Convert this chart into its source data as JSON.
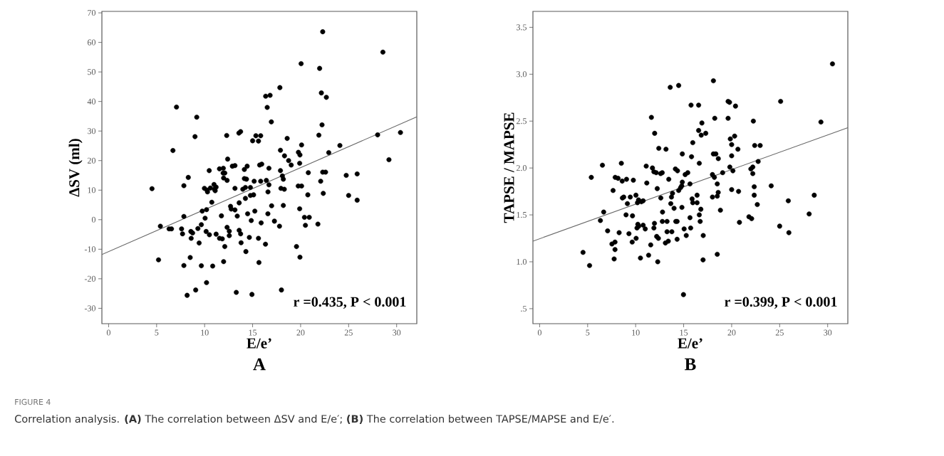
{
  "chart_data": [
    {
      "type": "scatter",
      "xlabel": "E/e’",
      "ylabel": "∆SV (ml)",
      "xlim": [
        -0.7,
        32.1
      ],
      "ylim": [
        -35.2,
        70.5
      ],
      "xticks": [
        0,
        5,
        10,
        15,
        20,
        25,
        30
      ],
      "yticks": [
        -30,
        -20,
        -10,
        0,
        10,
        20,
        30,
        40,
        50,
        60,
        70
      ],
      "annotations": [
        "r =0.435, P < 0.001",
        "A",
        "FIGURE 4",
        "Correlation analysis. **(A)** The correlation between ΔSV and E/e′; **(B)** The correlation between TAPSE/MAPSE and E/e′."
      ],
      "series": [
        {
          "marker": "circle",
          "color": "#000000",
          "x": [
            4.52,
            5.39,
            5.2,
            6.3,
            6.55,
            6.7,
            7.07,
            7.84,
            7.84,
            7.6,
            7.7,
            8.3,
            7.84,
            8.18,
            8.57,
            8.75,
            8.6,
            8.5,
            9.0,
            9.18,
            9.07,
            9.43,
            9.3,
            9.66,
            9.75,
            9.66,
            10.05,
            9.98,
            10.25,
            10.3,
            10.2,
            10.2,
            10.16,
            10.5,
            10.48,
            10.75,
            10.84,
            10.6,
            10.98,
            11.02,
            11.2,
            11.1,
            11.2,
            11.55,
            11.95,
            11.93,
            12.1,
            11.75,
            11.55,
            11.84,
            11.98,
            12.1,
            12.3,
            12.4,
            11.98,
            12.34,
            12.34,
            12.57,
            12.57,
            12.7,
            12.77,
            12.89,
            13.16,
            13.57,
            13.75,
            13.16,
            13.6,
            13.16,
            13.4,
            13.6,
            13.75,
            13.8,
            14.3,
            13.3,
            14.93,
            14.14,
            14.43,
            14.14,
            14.36,
            13.98,
            14.25,
            14.77,
            14.25,
            14.77,
            15.1,
            14.48,
            14.86,
            14.66,
            15.16,
            15.0,
            15.34,
            15.61,
            15.84,
            15.73,
            15.95,
            15.84,
            15.23,
            15.89,
            15.61,
            15.66,
            16.36,
            16.82,
            16.52,
            16.95,
            16.7,
            16.43,
            16.7,
            16.6,
            16.59,
            16.98,
            16.34,
            17.27,
            17.8,
            17.84,
            17.9,
            18.32,
            17.9,
            18.1,
            18.2,
            17.95,
            18.3,
            18.2,
            18.0,
            18.6,
            18.75,
            19.02,
            19.77,
            19.93,
            20.1,
            19.9,
            19.75,
            20.1,
            19.9,
            20.4,
            20.9,
            20.5,
            20.75,
            20.8,
            19.57,
            19.93,
            20.05,
            21.98,
            22.16,
            22.68,
            22.23,
            21.9,
            22.3,
            22.93,
            22.3,
            22.6,
            22.09,
            22.36,
            21.8,
            24.09,
            24.75,
            25.89,
            25.0,
            25.89,
            28.02,
            28.57,
            29.2,
            30.4
          ],
          "values": [
            10.5,
            -2.2,
            -13.6,
            -3.1,
            -3.1,
            23.4,
            38.1,
            11.5,
            1.1,
            -3.1,
            -4.8,
            14.3,
            -15.5,
            -25.6,
            -4.0,
            -4.5,
            -6.3,
            -12.8,
            28.1,
            34.7,
            -23.8,
            -7.9,
            -3.0,
            -1.7,
            2.9,
            -15.6,
            0.5,
            10.6,
            10.0,
            9.4,
            3.4,
            -21.3,
            -4.0,
            -5.1,
            16.6,
            5.9,
            -15.7,
            10.7,
            11.9,
            10.3,
            11.0,
            9.8,
            -4.9,
            17.2,
            17.4,
            15.8,
            15.8,
            1.3,
            -6.3,
            -6.5,
            -14.2,
            -9.1,
            28.5,
            20.5,
            14.1,
            13.3,
            -2.6,
            -3.9,
            -5.4,
            4.5,
            3.6,
            18.1,
            18.3,
            29.3,
            29.8,
            10.6,
            5.7,
            3.3,
            1.2,
            -3.6,
            -4.8,
            -7.8,
            -10.8,
            -24.6,
            -25.3,
            17.0,
            18.1,
            13.9,
            13.7,
            10.3,
            10.9,
            10.9,
            7.2,
            8.2,
            8.4,
            2.0,
            -0.3,
            -6.0,
            13.0,
            26.7,
            28.4,
            26.6,
            28.4,
            18.5,
            18.8,
            13.0,
            2.9,
            -1.1,
            -6.3,
            -14.5,
            41.8,
            42.1,
            38.0,
            33.1,
            17.4,
            13.3,
            11.8,
            9.4,
            2.0,
            4.7,
            -8.3,
            -0.5,
            -2.2,
            44.7,
            23.5,
            21.6,
            16.6,
            14.8,
            13.7,
            10.6,
            10.3,
            4.8,
            -23.8,
            27.5,
            20.0,
            18.5,
            22.8,
            21.9,
            25.3,
            19.1,
            11.4,
            11.4,
            3.7,
            0.8,
            0.8,
            -1.9,
            8.4,
            15.9,
            -9.1,
            -12.7,
            52.8,
            51.2,
            42.9,
            41.4,
            32.1,
            28.6,
            63.6,
            22.7,
            16.1,
            16.1,
            13.0,
            8.9,
            -1.5,
            25.1,
            15.0,
            15.5,
            8.2,
            6.6,
            28.7,
            56.7,
            20.3,
            29.5
          ]
        },
        {
          "type": "line",
          "marker": "none",
          "line_style": "solid",
          "color": "#666666",
          "x": [
            -0.7,
            32.1
          ],
          "values": [
            -11.8,
            34.8
          ]
        }
      ]
    },
    {
      "type": "scatter",
      "xlabel": "E/e’",
      "ylabel": "TAPSE / MAPSE",
      "xlim": [
        -0.7,
        32.1
      ],
      "ylim": [
        0.34,
        3.67
      ],
      "xticks": [
        0,
        5,
        10,
        15,
        20,
        25,
        30
      ],
      "yticks": [
        {
          "value": 0.5,
          "label": ".5"
        },
        {
          "value": 1,
          "label": "1.0"
        },
        1.5,
        {
          "value": 2,
          "label": "2.0"
        },
        2.5,
        {
          "value": 3,
          "label": "3.0"
        },
        3.5
      ],
      "annotations": [
        "r =0.399, P < 0.001",
        "B"
      ],
      "series": [
        {
          "marker": "circle",
          "color": "#000000",
          "x": [
            4.52,
            5.2,
            5.38,
            6.33,
            6.54,
            6.67,
            7.08,
            7.65,
            7.53,
            7.85,
            7.85,
            7.76,
            7.87,
            8.17,
            8.28,
            8.51,
            8.6,
            8.62,
            8.76,
            9.05,
            9.14,
            9.0,
            9.3,
            9.44,
            9.67,
            9.64,
            9.76,
            10.03,
            10.05,
            10.19,
            10.3,
            10.23,
            10.32,
            10.14,
            10.5,
            10.6,
            10.78,
            10.78,
            11.0,
            11.1,
            11.16,
            11.35,
            11.57,
            11.64,
            11.75,
            11.9,
            11.9,
            11.96,
            11.98,
            12.14,
            12.25,
            12.19,
            12.37,
            12.3,
            12.41,
            12.6,
            12.77,
            12.62,
            12.8,
            12.78,
            13.1,
            13.4,
            13.16,
            13.27,
            13.27,
            13.45,
            13.6,
            13.66,
            13.73,
            13.84,
            13.77,
            14.0,
            14.14,
            14.36,
            14.18,
            14.32,
            14.32,
            14.48,
            14.48,
            14.68,
            14.8,
            14.86,
            14.82,
            14.86,
            14.98,
            15.05,
            15.27,
            15.16,
            15.43,
            15.77,
            16.56,
            15.82,
            15.95,
            15.66,
            16.4,
            15.88,
            15.95,
            16.4,
            15.66,
            15.73,
            16.56,
            16.9,
            16.83,
            17.3,
            16.63,
            16.79,
            16.63,
            16.72,
            17.04,
            17.02,
            18.1,
            18.24,
            18.1,
            18.35,
            18.61,
            18.0,
            18.2,
            18.5,
            18.6,
            18.5,
            18.0,
            18.83,
            18.5,
            19.06,
            19.63,
            19.78,
            19.63,
            20.4,
            19.86,
            20.0,
            20.31,
            20.65,
            20.0,
            19.81,
            20.13,
            20.0,
            20.72,
            20.81,
            22.26,
            22.4,
            22.97,
            22.76,
            22.0,
            22.2,
            22.2,
            22.35,
            22.35,
            22.67,
            21.8,
            22.08,
            25.1,
            24.12,
            25.9,
            25.0,
            25.96,
            28.07,
            28.6,
            29.3,
            30.5
          ],
          "values": [
            1.1,
            0.96,
            1.9,
            1.44,
            2.03,
            1.53,
            1.33,
            1.76,
            1.19,
            1.21,
            1.13,
            1.03,
            1.9,
            1.89,
            1.31,
            2.05,
            1.86,
            1.68,
            1.69,
            1.88,
            1.62,
            1.5,
            1.3,
            1.69,
            1.49,
            1.21,
            1.87,
            1.71,
            1.25,
            1.63,
            1.66,
            1.4,
            1.38,
            1.36,
            1.04,
            1.64,
            1.65,
            1.39,
            1.35,
            2.02,
            1.84,
            1.07,
            1.18,
            2.54,
            2.0,
            1.96,
            1.36,
            1.41,
            2.37,
            1.95,
            1.78,
            1.27,
            1.25,
            1.0,
            2.21,
            1.94,
            1.95,
            1.68,
            1.53,
            1.43,
            1.2,
            1.22,
            2.2,
            1.32,
            1.43,
            1.88,
            2.86,
            1.62,
            1.69,
            1.73,
            1.32,
            1.57,
            1.99,
            1.97,
            1.43,
            1.43,
            1.24,
            2.88,
            1.76,
            1.79,
            1.81,
            1.85,
            1.58,
            2.15,
            0.65,
            1.35,
            1.28,
            1.93,
            1.95,
            2.67,
            2.67,
            2.12,
            2.27,
            1.83,
            1.71,
            1.67,
            1.63,
            1.63,
            1.47,
            1.36,
            2.4,
            2.48,
            2.35,
            2.37,
            2.05,
            1.56,
            1.5,
            1.43,
            1.28,
            1.02,
            2.93,
            2.53,
            2.15,
            2.15,
            2.1,
            1.93,
            1.9,
            1.83,
            1.74,
            1.7,
            1.69,
            1.55,
            1.08,
            1.95,
            2.71,
            2.7,
            2.53,
            2.66,
            2.31,
            2.25,
            2.34,
            2.2,
            2.13,
            2.01,
            1.97,
            1.77,
            1.75,
            1.42,
            2.5,
            2.24,
            2.24,
            2.07,
            1.99,
            2.01,
            1.94,
            1.8,
            1.71,
            1.61,
            1.48,
            1.46,
            2.71,
            1.81,
            1.65,
            1.38,
            1.31,
            1.51,
            1.71,
            2.49,
            3.11
          ]
        },
        {
          "type": "line",
          "marker": "none",
          "line_style": "solid",
          "color": "#666666",
          "x": [
            -0.7,
            32.1
          ],
          "values": [
            1.22,
            2.43
          ]
        }
      ]
    }
  ]
}
